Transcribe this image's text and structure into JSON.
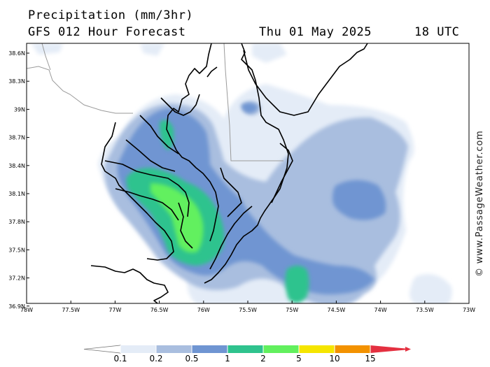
{
  "header": {
    "line1": "Precipitation (mm/3hr)",
    "model": "GFS 012 Hour Forecast",
    "date": "Thu 01 May 2025",
    "time": "18 UTC"
  },
  "watermark": "© www.PassageWeather.com",
  "axes": {
    "lat_labels": [
      "38.6N",
      "38.3N",
      "39N",
      "38.7N",
      "38.4N",
      "38.1N",
      "37.8N",
      "37.5N",
      "37.2N",
      "36.9N"
    ],
    "lon_labels": [
      "78W",
      "77.5W",
      "77W",
      "76.5W",
      "76W",
      "75.5W",
      "75W",
      "74.5W",
      "74W",
      "73.5W",
      "73W"
    ]
  },
  "colorbar": {
    "labels": [
      "0.1",
      "0.2",
      "0.5",
      "1",
      "2",
      "5",
      "10",
      "15"
    ],
    "colors": [
      "#e4ecf7",
      "#a9bedf",
      "#6f95d2",
      "#2fc38e",
      "#62f05e",
      "#f5e500",
      "#f39200",
      "#e43040"
    ]
  },
  "colors": {
    "land_line": "#000000",
    "border_line": "#9a9a9a",
    "levels": {
      "p01": "#e4ecf7",
      "p02": "#a9bedf",
      "p05": "#6f95d2",
      "p1": "#2fc38e",
      "p2": "#62f05e"
    }
  }
}
